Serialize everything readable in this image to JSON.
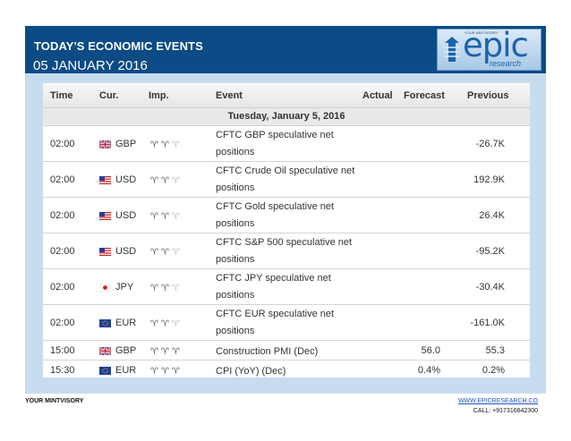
{
  "header": {
    "title": "TODAY'S ECONOMIC EVENTS",
    "date": "05 JANUARY 2016",
    "logo": {
      "word": "epic",
      "sub": "research",
      "tag": "YOUR MINTVISORY"
    }
  },
  "table": {
    "columns": {
      "time": "Time",
      "cur": "Cur.",
      "imp": "Imp.",
      "event": "Event",
      "actual": "Actual",
      "forecast": "Forecast",
      "previous": "Previous"
    },
    "day": "Tuesday, January 5, 2016",
    "rows": [
      {
        "time": "02:00",
        "flag": "gb-flag",
        "cur": "GBP",
        "imp": 2,
        "event": "CFTC GBP speculative net positions",
        "actual": "",
        "forecast": "",
        "previous": "-26.7K"
      },
      {
        "time": "02:00",
        "flag": "us-flag",
        "cur": "USD",
        "imp": 2,
        "event": "CFTC Crude Oil speculative net positions",
        "actual": "",
        "forecast": "",
        "previous": "192.9K"
      },
      {
        "time": "02:00",
        "flag": "us-flag",
        "cur": "USD",
        "imp": 2,
        "event": "CFTC Gold speculative net positions",
        "actual": "",
        "forecast": "",
        "previous": "26.4K"
      },
      {
        "time": "02:00",
        "flag": "us-flag",
        "cur": "USD",
        "imp": 2,
        "event": "CFTC S&P 500 speculative net positions",
        "actual": "",
        "forecast": "",
        "previous": "-95.2K"
      },
      {
        "time": "02:00",
        "flag": "jp-flag",
        "cur": "JPY",
        "imp": 2,
        "event": "CFTC JPY speculative net positions",
        "actual": "",
        "forecast": "",
        "previous": "-30.4K"
      },
      {
        "time": "02:00",
        "flag": "eu-flag",
        "cur": "EUR",
        "imp": 2,
        "event": "CFTC EUR speculative net positions",
        "actual": "",
        "forecast": "",
        "previous": "-161.0K"
      },
      {
        "time": "15:00",
        "flag": "gb-flag",
        "cur": "GBP",
        "imp": 3,
        "event": "Construction PMI (Dec)",
        "actual": "",
        "forecast": "56.0",
        "previous": "55.3"
      },
      {
        "time": "15:30",
        "flag": "eu-flag",
        "cur": "EUR",
        "imp": 3,
        "event": "CPI (YoY) (Dec)",
        "actual": "",
        "forecast": "0.4%",
        "previous": "0.2%"
      }
    ]
  },
  "footer": {
    "left": "YOUR MINTVISORY",
    "link": "WWW.EPICRESEARCH.CO",
    "call": "CALL: +917316642300"
  },
  "colors": {
    "header_bg": "#0b4b86",
    "panel_bg": "#c8dcf0",
    "link": "#1a56c8"
  }
}
